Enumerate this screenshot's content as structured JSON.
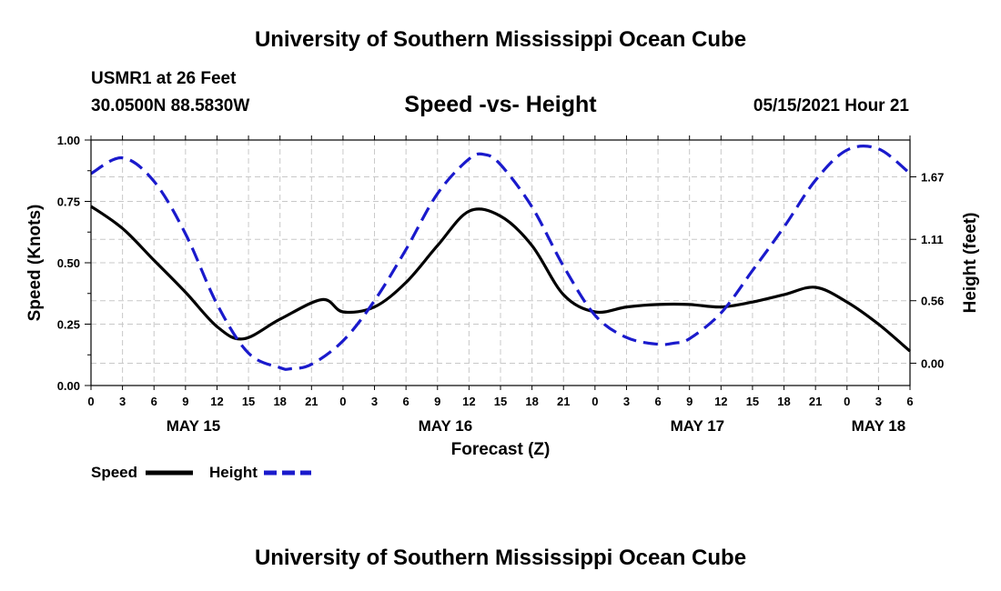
{
  "header": {
    "title": "University of Southern Mississippi Ocean Cube",
    "station": "USMR1 at 26 Feet",
    "coords": "30.0500N  88.5830W",
    "chart_title": "Speed -vs- Height",
    "datetime": "05/15/2021 Hour 21"
  },
  "footer": {
    "title": "University of Southern Mississippi Ocean Cube"
  },
  "legend": {
    "speed_label": "Speed",
    "height_label": "Height"
  },
  "colors": {
    "speed": "#000000",
    "height": "#1a1acc",
    "grid": "#c8c8c8"
  },
  "chart_data": {
    "type": "line",
    "title": "Speed -vs- Height",
    "xlabel": "Forecast (Z)",
    "ylabel": "Speed (Knots)",
    "ylabel_right": "Height (feet)",
    "xlim": [
      0,
      78
    ],
    "ylim": [
      0,
      1
    ],
    "ylim_right": [
      -0.2,
      2.0
    ],
    "grid": true,
    "legend_position": "bottom-left",
    "x_ticks": [
      0,
      3,
      6,
      9,
      12,
      15,
      18,
      21,
      24,
      27,
      30,
      33,
      36,
      39,
      42,
      45,
      48,
      51,
      54,
      57,
      60,
      63,
      66,
      69,
      72,
      75,
      78
    ],
    "x_tick_labels": [
      "0",
      "3",
      "6",
      "9",
      "12",
      "15",
      "18",
      "21",
      "0",
      "3",
      "6",
      "9",
      "12",
      "15",
      "18",
      "21",
      "0",
      "3",
      "6",
      "9",
      "12",
      "15",
      "18",
      "21",
      "0",
      "3",
      "6"
    ],
    "day_labels": [
      {
        "x": 9.75,
        "label": "MAY 15"
      },
      {
        "x": 33.75,
        "label": "MAY 16"
      },
      {
        "x": 57.75,
        "label": "MAY 17"
      },
      {
        "x": 75,
        "label": "MAY 18"
      }
    ],
    "y_ticks_left": [
      0,
      0.25,
      0.5,
      0.75,
      1.0
    ],
    "y_tick_labels_left": [
      "0.00",
      "0.25",
      "0.50",
      "0.75",
      "1.00"
    ],
    "y_ticks_right": [
      0.0,
      0.56,
      1.11,
      1.67
    ],
    "y_tick_labels_right": [
      "0.00",
      "0.56",
      "1.11",
      "1.67"
    ],
    "series": [
      {
        "name": "Speed",
        "axis": "left",
        "style": "solid",
        "x": [
          0,
          3,
          6,
          9,
          12,
          14.5,
          18,
          22,
          24,
          27,
          30,
          33,
          36,
          39,
          42,
          45,
          48,
          51,
          54,
          57,
          60,
          63,
          66,
          69,
          72,
          75,
          78
        ],
        "values": [
          0.73,
          0.64,
          0.51,
          0.38,
          0.24,
          0.19,
          0.27,
          0.35,
          0.3,
          0.32,
          0.42,
          0.57,
          0.71,
          0.69,
          0.57,
          0.37,
          0.3,
          0.32,
          0.33,
          0.33,
          0.32,
          0.34,
          0.37,
          0.4,
          0.34,
          0.25,
          0.14
        ]
      },
      {
        "name": "Height",
        "axis": "right",
        "style": "dashed",
        "x": [
          0,
          3,
          6,
          9,
          12,
          15,
          18,
          19,
          21,
          24,
          27,
          30,
          33,
          36,
          37.5,
          39,
          42,
          45,
          48,
          51,
          54,
          55.5,
          57,
          60,
          63,
          66,
          69,
          72,
          75,
          78
        ],
        "values": [
          1.7,
          1.84,
          1.63,
          1.16,
          0.53,
          0.09,
          -0.04,
          -0.05,
          -0.01,
          0.2,
          0.56,
          1.02,
          1.52,
          1.83,
          1.87,
          1.78,
          1.4,
          0.87,
          0.43,
          0.23,
          0.17,
          0.18,
          0.22,
          0.45,
          0.83,
          1.22,
          1.64,
          1.91,
          1.92,
          1.7
        ]
      }
    ]
  }
}
